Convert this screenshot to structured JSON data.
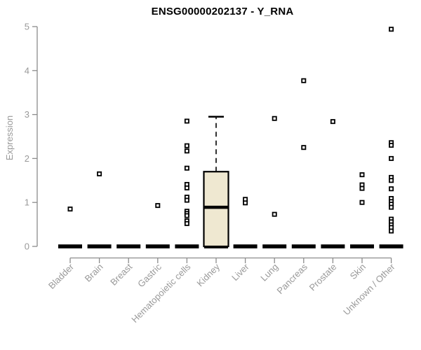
{
  "chart_data": {
    "type": "boxplot",
    "title": "ENSG00000202137 - Y_RNA",
    "ylabel": "Expression",
    "xlabel": "",
    "ylim": [
      0,
      5
    ],
    "yticks": [
      0,
      1,
      2,
      3,
      4,
      5
    ],
    "grid": false,
    "legend": false,
    "categories": [
      "Bladder",
      "Brain",
      "Breast",
      "Gastric",
      "Hematopoietic cells",
      "Kidney",
      "Liver",
      "Lung",
      "Pancreas",
      "Prostate",
      "Skin",
      "Unknown / Other"
    ],
    "series": [
      {
        "category": "Bladder",
        "zero_cluster": true,
        "points": [
          0.85
        ]
      },
      {
        "category": "Brain",
        "zero_cluster": true,
        "points": [
          1.65
        ]
      },
      {
        "category": "Breast",
        "zero_cluster": true,
        "points": []
      },
      {
        "category": "Gastric",
        "zero_cluster": true,
        "points": [
          0.93
        ]
      },
      {
        "category": "Hematopoietic cells",
        "zero_cluster": true,
        "points": [
          2.85,
          2.29,
          2.17,
          1.78,
          1.41,
          1.33,
          1.12,
          1.05,
          0.8,
          0.75,
          0.7,
          0.58,
          0.52
        ]
      },
      {
        "category": "Kidney",
        "zero_cluster": true,
        "points": [],
        "box": {
          "whisker_low": 0,
          "q1": 0,
          "median": 0.89,
          "q3": 1.7,
          "whisker_high": 2.95
        }
      },
      {
        "category": "Liver",
        "zero_cluster": true,
        "points": [
          1.07,
          0.99
        ]
      },
      {
        "category": "Lung",
        "zero_cluster": true,
        "points": [
          2.91,
          0.73
        ]
      },
      {
        "category": "Pancreas",
        "zero_cluster": true,
        "points": [
          3.77,
          2.25
        ]
      },
      {
        "category": "Prostate",
        "zero_cluster": true,
        "points": [
          2.84
        ]
      },
      {
        "category": "Skin",
        "zero_cluster": true,
        "points": [
          1.63,
          1.4,
          1.32,
          1.0
        ]
      },
      {
        "category": "Unknown / Other",
        "zero_cluster": true,
        "points": [
          4.94,
          2.36,
          2.3,
          2.0,
          1.57,
          1.5,
          1.31,
          1.09,
          1.02,
          0.96,
          0.89,
          0.62,
          0.56,
          0.49,
          0.43,
          0.35
        ]
      }
    ],
    "colors": {
      "box_fill": "#EFE8D1",
      "box_border": "#000000",
      "point": "#000000",
      "zero_bar": "#000000",
      "axis": "#8C8C8C",
      "tick_label": "#999999",
      "title": "#000000"
    }
  }
}
